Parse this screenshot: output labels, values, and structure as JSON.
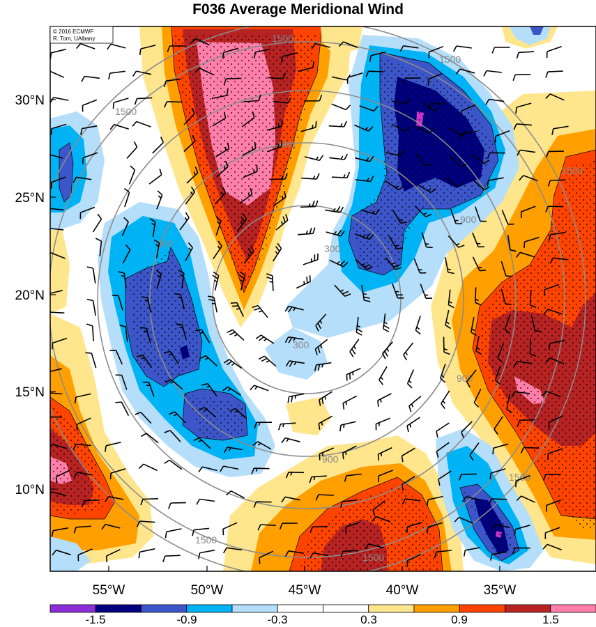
{
  "title": "F036 Average Meridional Wind",
  "credit": {
    "line1": "© 2016 ECMWF",
    "line2": "R. Torn, UAlbany"
  },
  "lat_labels": [
    "30°N",
    "25°N",
    "20°N",
    "15°N",
    "10°N"
  ],
  "lon_labels": [
    "55°W",
    "50°W",
    "45°W",
    "40°W",
    "35°W"
  ],
  "contour_labels": [
    "1500",
    "1500",
    "1500",
    "900",
    "900",
    "300",
    "300",
    "900",
    "900",
    "900",
    "1500",
    "1500",
    "1500",
    "1500"
  ],
  "colorbar": {
    "labels": [
      "-1.5",
      "-0.9",
      "-0.3",
      "0.3",
      "0.9",
      "1.5"
    ],
    "colors": [
      "#8c2fd6",
      "#00007f",
      "#3c56c9",
      "#00b3f4",
      "#b5defa",
      "#ffffff",
      "#ffffff",
      "#ffe68c",
      "#ff9f00",
      "#ff4400",
      "#b72222",
      "#ff7faa"
    ]
  },
  "shading_colors": {
    "pos_light": "#ffe68c",
    "pos_orange": "#ff9f00",
    "pos_red": "#ff4400",
    "pos_darkred": "#b72222",
    "pos_pink": "#ff7faa",
    "neg_light": "#b5defa",
    "neg_cyan": "#00b3f4",
    "neg_blue": "#3c56c9",
    "neg_navy": "#00007f",
    "neg_violet": "#cc33cc"
  }
}
